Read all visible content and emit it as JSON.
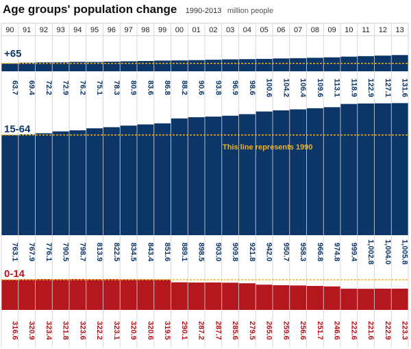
{
  "header": {
    "title": "Age groups' population change",
    "years_range": "1990-2013",
    "unit": "million people"
  },
  "annotation": "This line represents 1990",
  "colors": {
    "blue": "#0c3667",
    "red": "#b5171f",
    "reference_line": "#f2b21a",
    "grid": "#cfcfcf"
  },
  "chart_data": {
    "type": "bar",
    "categories": [
      "90",
      "91",
      "92",
      "93",
      "94",
      "95",
      "96",
      "97",
      "98",
      "99",
      "00",
      "01",
      "02",
      "03",
      "04",
      "05",
      "06",
      "07",
      "08",
      "09",
      "10",
      "11",
      "12",
      "13"
    ],
    "series": [
      {
        "name": "+65",
        "color": "#0c3667",
        "values": [
          "63.7",
          "69.4",
          "72.2",
          "72.9",
          "76.2",
          "75.1",
          "78.3",
          "80.9",
          "83.6",
          "86.8",
          "88.2",
          "90.6",
          "93.8",
          "96.9",
          "98.6",
          "100.6",
          "104.2",
          "106.4",
          "109.6",
          "113.1",
          "118.9",
          "122.9",
          "127.1",
          "131.6"
        ]
      },
      {
        "name": "15-64",
        "color": "#0c3667",
        "values": [
          "763.1",
          "767.9",
          "776.1",
          "790.5",
          "798.7",
          "813.9",
          "822.5",
          "834.5",
          "843.4",
          "851.6",
          "889.1",
          "898.5",
          "903.0",
          "909.8",
          "921.8",
          "942.0",
          "950.7",
          "958.3",
          "966.8",
          "974.8",
          "999.4",
          "1,002.8",
          "1,004.0",
          "1,005.8"
        ]
      },
      {
        "name": "0-14",
        "color": "#b5171f",
        "values": [
          "316.6",
          "320.9",
          "323.4",
          "321.8",
          "323.6",
          "322.2",
          "323.1",
          "320.9",
          "320.6",
          "319.5",
          "290.1",
          "287.2",
          "287.7",
          "285.6",
          "279.5",
          "265.0",
          "259.6",
          "256.6",
          "251.7",
          "246.6",
          "222.6",
          "221.6",
          "222.9",
          "223.3"
        ]
      }
    ]
  }
}
